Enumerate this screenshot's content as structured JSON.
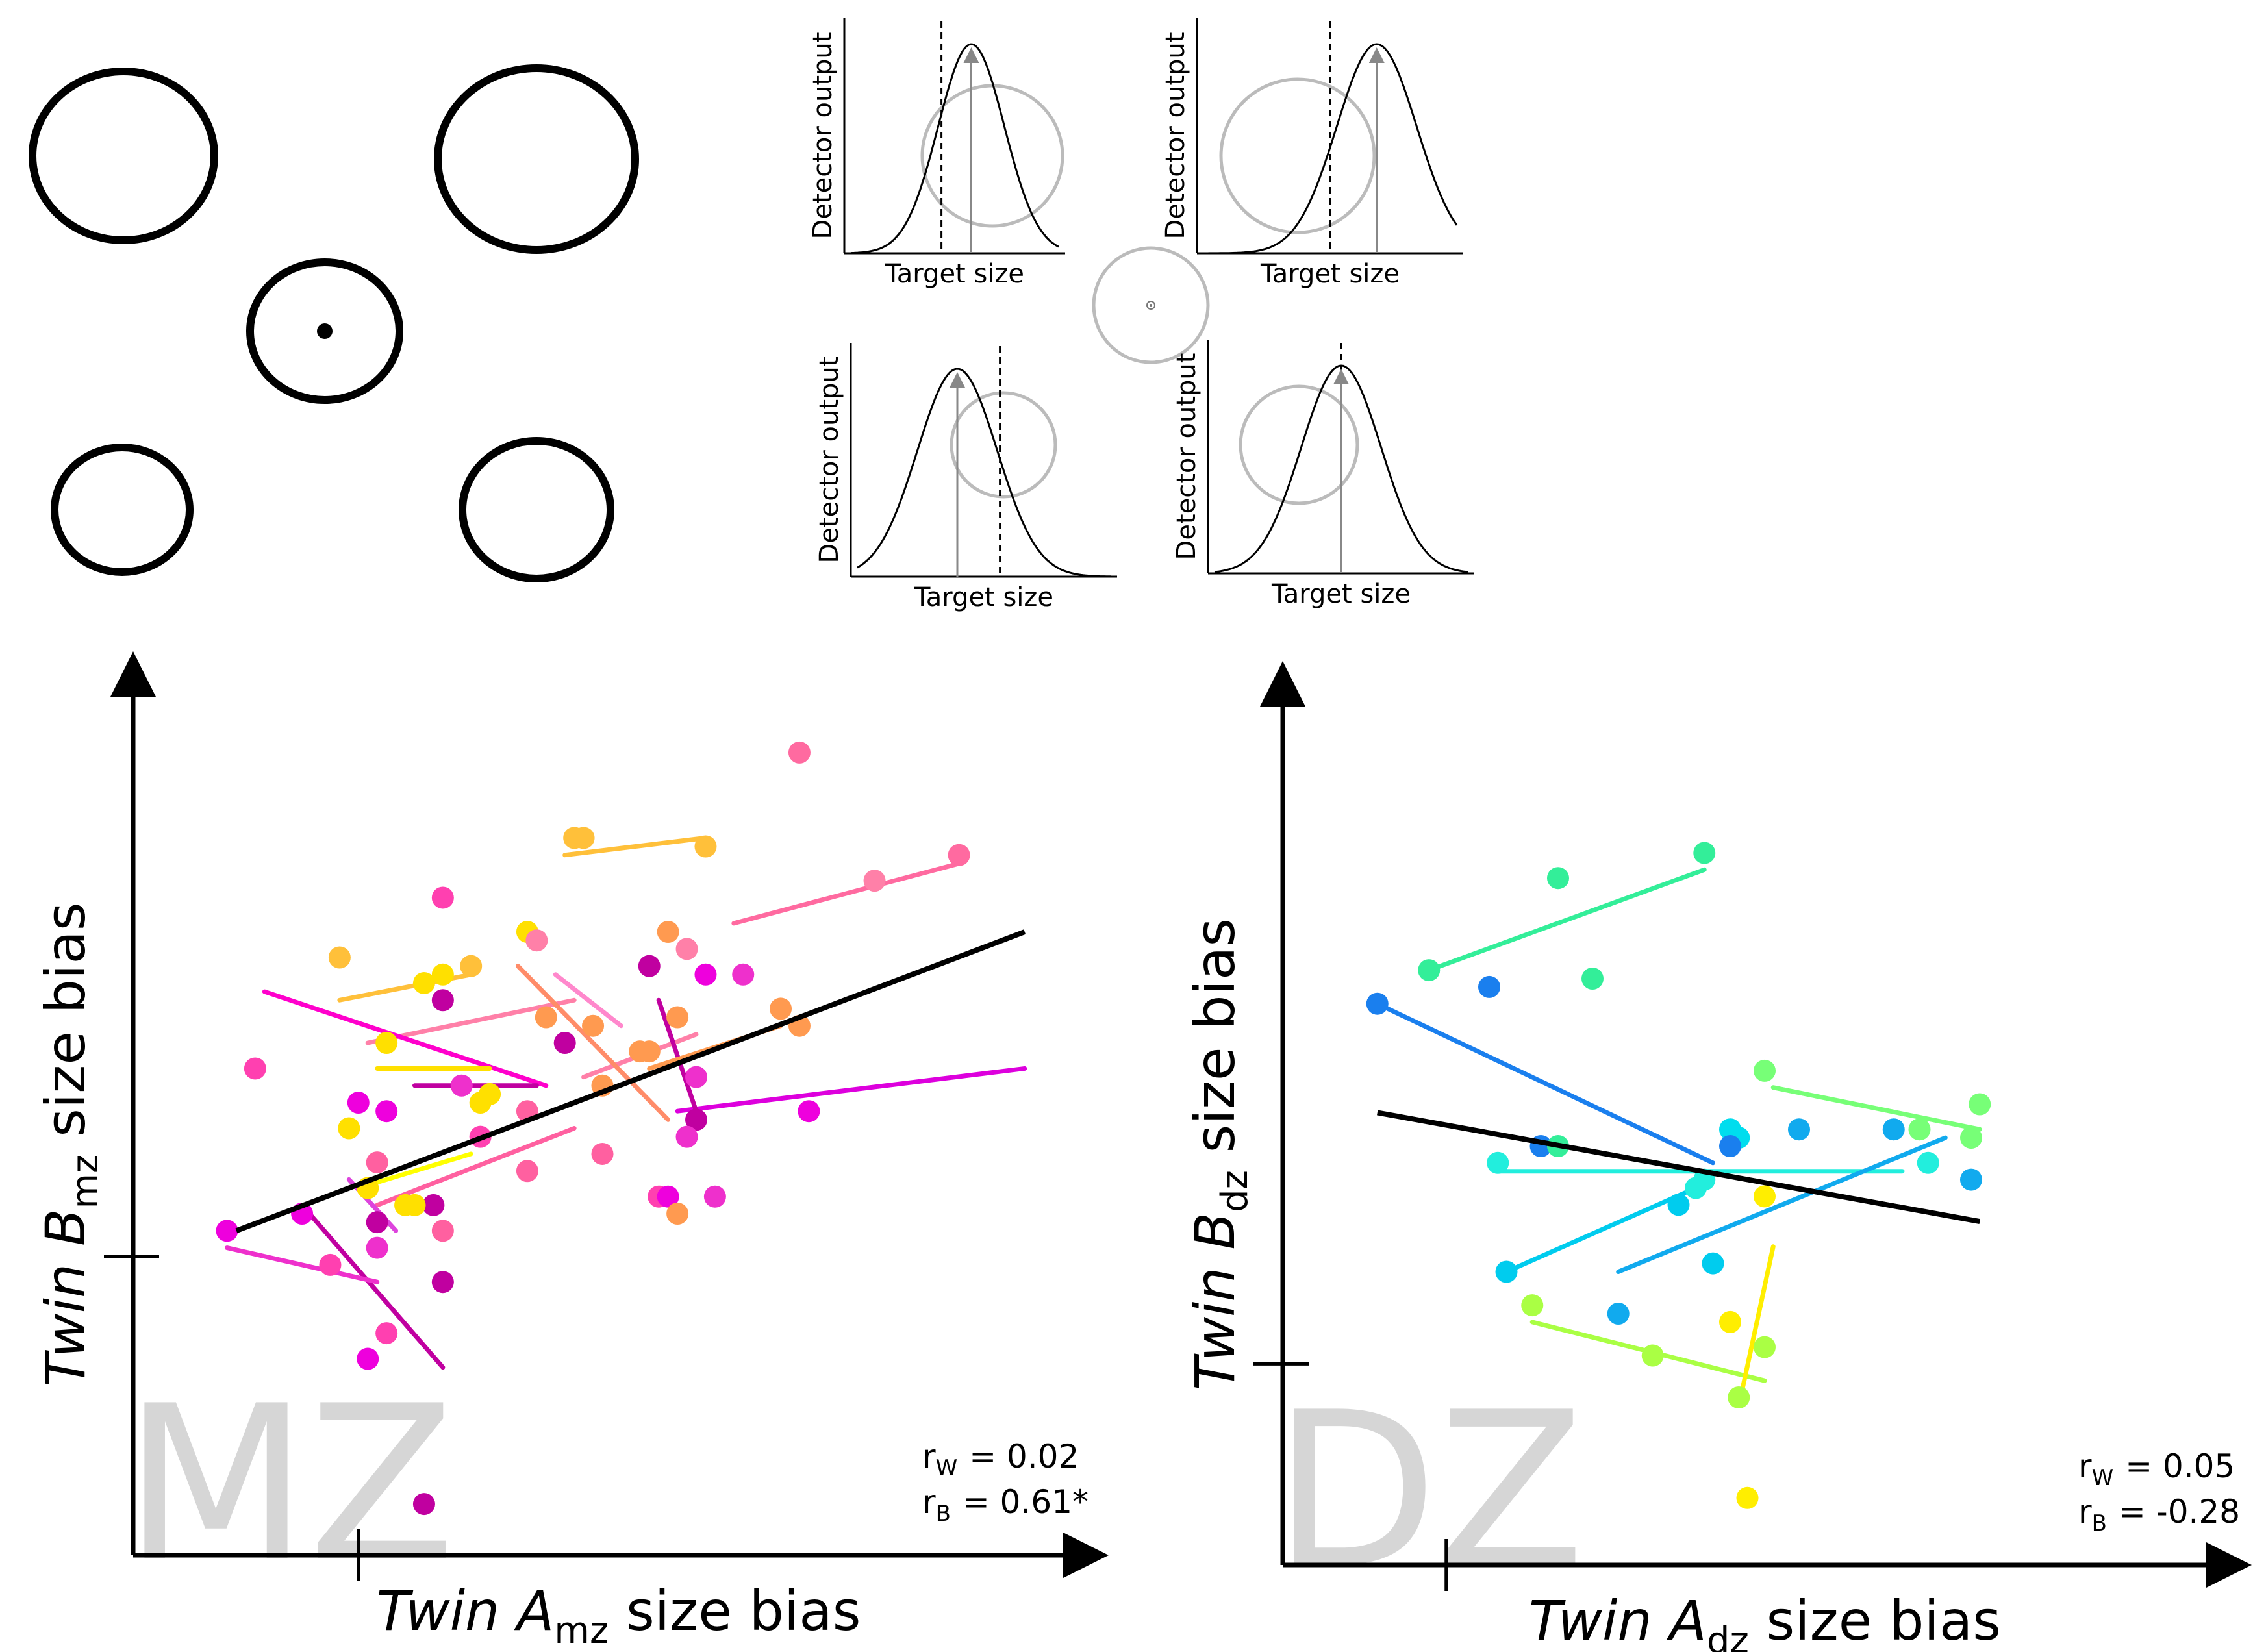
{
  "stimulus": {
    "description_free": true,
    "circles": 5,
    "fixation": true
  },
  "detector_panels": [
    {
      "ylabel": "Detector output",
      "xlabel": "Target size",
      "peak_offset": 0.15,
      "dashed_offset": -0.12,
      "shape": "right-shifted"
    },
    {
      "ylabel": "Detector output",
      "xlabel": "Target size",
      "peak_offset": 0.35,
      "dashed_offset": 0.0,
      "shape": "right-shifted"
    },
    {
      "ylabel": "Detector output",
      "xlabel": "Target size",
      "peak_offset": -0.2,
      "dashed_offset": 0.12,
      "shape": "left-shifted"
    },
    {
      "ylabel": "Detector output",
      "xlabel": "Target size",
      "peak_offset": 0.0,
      "dashed_offset": 0.0,
      "shape": "centered"
    }
  ],
  "chart_data": [
    {
      "type": "scatter",
      "panel": "MZ",
      "watermark": "MZ",
      "xlabel": {
        "italic": "Twin A",
        "sub": "mz",
        "rest": " size bias"
      },
      "ylabel": {
        "italic": "Twin B",
        "sub": "mz",
        "rest": " size bias"
      },
      "stats": [
        {
          "sub": "W",
          "label": "r",
          "value": "= 0.02"
        },
        {
          "sub": "B",
          "label": "r",
          "value": "= 0.61*"
        }
      ],
      "xlim": [
        0,
        1
      ],
      "ylim": [
        0,
        1
      ],
      "origin_tick": {
        "x": 0.24,
        "y": 0.35
      },
      "regression": {
        "x": [
          0.11,
          0.95
        ],
        "y": [
          0.38,
          0.73
        ],
        "color": "#000000"
      },
      "pairs": [
        {
          "color": "#ffc03a",
          "p1": [
            0.46,
            0.82
          ],
          "p2": [
            0.61,
            0.84
          ]
        },
        {
          "color": "#ffc03a",
          "p1": [
            0.22,
            0.65
          ],
          "p2": [
            0.36,
            0.68
          ]
        },
        {
          "color": "#ff6aa0",
          "p1": [
            0.64,
            0.74
          ],
          "p2": [
            0.88,
            0.81
          ]
        },
        {
          "color": "#ff80a8",
          "p1": [
            0.25,
            0.6
          ],
          "p2": [
            0.47,
            0.65
          ]
        },
        {
          "color": "#ff00cc",
          "p1": [
            0.14,
            0.66
          ],
          "p2": [
            0.44,
            0.55
          ]
        },
        {
          "color": "#dd00dd",
          "p1": [
            0.58,
            0.52
          ],
          "p2": [
            0.95,
            0.57
          ]
        },
        {
          "color": "#ff80a8",
          "p1": [
            0.48,
            0.56
          ],
          "p2": [
            0.6,
            0.61
          ]
        },
        {
          "color": "#c000a0",
          "p1": [
            0.56,
            0.65
          ],
          "p2": [
            0.6,
            0.52
          ]
        },
        {
          "color": "#ff8c69",
          "p1": [
            0.41,
            0.69
          ],
          "p2": [
            0.57,
            0.51
          ]
        },
        {
          "color": "#ff9a50",
          "p1": [
            0.55,
            0.57
          ],
          "p2": [
            0.69,
            0.62
          ]
        },
        {
          "color": "#ffe000",
          "p1": [
            0.26,
            0.57
          ],
          "p2": [
            0.38,
            0.57
          ]
        },
        {
          "color": "#ff60a0",
          "p1": [
            0.26,
            0.41
          ],
          "p2": [
            0.47,
            0.5
          ]
        },
        {
          "color": "#ffff00",
          "p1": [
            0.24,
            0.43
          ],
          "p2": [
            0.36,
            0.47
          ]
        },
        {
          "color": "#c000a0",
          "p1": [
            0.18,
            0.41
          ],
          "p2": [
            0.33,
            0.22
          ]
        },
        {
          "color": "#ee30cc",
          "p1": [
            0.1,
            0.36
          ],
          "p2": [
            0.26,
            0.32
          ]
        },
        {
          "color": "#c000a0",
          "p1": [
            0.3,
            0.55
          ],
          "p2": [
            0.43,
            0.55
          ]
        },
        {
          "color": "#dd44dd",
          "p1": [
            0.23,
            0.44
          ],
          "p2": [
            0.28,
            0.38
          ]
        },
        {
          "color": "#ff88cc",
          "p1": [
            0.45,
            0.68
          ],
          "p2": [
            0.52,
            0.62
          ]
        }
      ],
      "points": [
        {
          "x": 0.71,
          "y": 0.94,
          "c": "#ff6aa0"
        },
        {
          "x": 0.47,
          "y": 0.84,
          "c": "#ffc03a"
        },
        {
          "x": 0.48,
          "y": 0.84,
          "c": "#ffc03a"
        },
        {
          "x": 0.61,
          "y": 0.83,
          "c": "#ffc03a"
        },
        {
          "x": 0.88,
          "y": 0.82,
          "c": "#ff6aa0"
        },
        {
          "x": 0.79,
          "y": 0.79,
          "c": "#ff80a8"
        },
        {
          "x": 0.33,
          "y": 0.77,
          "c": "#ff40b0"
        },
        {
          "x": 0.42,
          "y": 0.73,
          "c": "#ffe000"
        },
        {
          "x": 0.43,
          "y": 0.72,
          "c": "#ff80a8"
        },
        {
          "x": 0.57,
          "y": 0.73,
          "c": "#ff9a50"
        },
        {
          "x": 0.59,
          "y": 0.71,
          "c": "#ff80a8"
        },
        {
          "x": 0.22,
          "y": 0.7,
          "c": "#ffc03a"
        },
        {
          "x": 0.36,
          "y": 0.69,
          "c": "#ffc03a"
        },
        {
          "x": 0.33,
          "y": 0.68,
          "c": "#ffe000"
        },
        {
          "x": 0.31,
          "y": 0.67,
          "c": "#ffe000"
        },
        {
          "x": 0.33,
          "y": 0.65,
          "c": "#c000a0"
        },
        {
          "x": 0.55,
          "y": 0.69,
          "c": "#c000a0"
        },
        {
          "x": 0.61,
          "y": 0.68,
          "c": "#ee00dd"
        },
        {
          "x": 0.65,
          "y": 0.68,
          "c": "#ee30cc"
        },
        {
          "x": 0.44,
          "y": 0.63,
          "c": "#ff9a50"
        },
        {
          "x": 0.49,
          "y": 0.62,
          "c": "#ff9a50"
        },
        {
          "x": 0.58,
          "y": 0.63,
          "c": "#ff9a50"
        },
        {
          "x": 0.69,
          "y": 0.64,
          "c": "#ff9a50"
        },
        {
          "x": 0.71,
          "y": 0.62,
          "c": "#ff9a50"
        },
        {
          "x": 0.46,
          "y": 0.6,
          "c": "#c000a0"
        },
        {
          "x": 0.54,
          "y": 0.59,
          "c": "#ff9a50"
        },
        {
          "x": 0.55,
          "y": 0.59,
          "c": "#ff9a50"
        },
        {
          "x": 0.27,
          "y": 0.6,
          "c": "#ffe000"
        },
        {
          "x": 0.13,
          "y": 0.57,
          "c": "#ff40b0"
        },
        {
          "x": 0.5,
          "y": 0.55,
          "c": "#ff9a50"
        },
        {
          "x": 0.6,
          "y": 0.56,
          "c": "#ee30cc"
        },
        {
          "x": 0.35,
          "y": 0.55,
          "c": "#ee30cc"
        },
        {
          "x": 0.38,
          "y": 0.54,
          "c": "#ffe000"
        },
        {
          "x": 0.37,
          "y": 0.53,
          "c": "#ffe000"
        },
        {
          "x": 0.24,
          "y": 0.53,
          "c": "#ee00dd"
        },
        {
          "x": 0.27,
          "y": 0.52,
          "c": "#ee00dd"
        },
        {
          "x": 0.42,
          "y": 0.52,
          "c": "#ff60a0"
        },
        {
          "x": 0.6,
          "y": 0.51,
          "c": "#c000a0"
        },
        {
          "x": 0.72,
          "y": 0.52,
          "c": "#ee00dd"
        },
        {
          "x": 0.23,
          "y": 0.5,
          "c": "#ffe000"
        },
        {
          "x": 0.37,
          "y": 0.49,
          "c": "#ff40b0"
        },
        {
          "x": 0.59,
          "y": 0.49,
          "c": "#ee30cc"
        },
        {
          "x": 0.5,
          "y": 0.47,
          "c": "#ff60a0"
        },
        {
          "x": 0.26,
          "y": 0.46,
          "c": "#ff60a0"
        },
        {
          "x": 0.42,
          "y": 0.45,
          "c": "#ff60a0"
        },
        {
          "x": 0.25,
          "y": 0.43,
          "c": "#ffe000"
        },
        {
          "x": 0.56,
          "y": 0.42,
          "c": "#ff40b0"
        },
        {
          "x": 0.57,
          "y": 0.42,
          "c": "#ee00dd"
        },
        {
          "x": 0.62,
          "y": 0.42,
          "c": "#ee30cc"
        },
        {
          "x": 0.32,
          "y": 0.41,
          "c": "#c000a0"
        },
        {
          "x": 0.29,
          "y": 0.41,
          "c": "#ffe000"
        },
        {
          "x": 0.3,
          "y": 0.41,
          "c": "#ffe000"
        },
        {
          "x": 0.18,
          "y": 0.4,
          "c": "#ee00dd"
        },
        {
          "x": 0.26,
          "y": 0.39,
          "c": "#c000a0"
        },
        {
          "x": 0.58,
          "y": 0.4,
          "c": "#ff9a50"
        },
        {
          "x": 0.1,
          "y": 0.38,
          "c": "#ee00dd"
        },
        {
          "x": 0.33,
          "y": 0.38,
          "c": "#ff60a0"
        },
        {
          "x": 0.26,
          "y": 0.36,
          "c": "#ee30cc"
        },
        {
          "x": 0.21,
          "y": 0.34,
          "c": "#ff40b0"
        },
        {
          "x": 0.33,
          "y": 0.32,
          "c": "#c000a0"
        },
        {
          "x": 0.27,
          "y": 0.26,
          "c": "#ff40b0"
        },
        {
          "x": 0.25,
          "y": 0.23,
          "c": "#ee00dd"
        },
        {
          "x": 0.31,
          "y": 0.06,
          "c": "#c000a0"
        }
      ]
    },
    {
      "type": "scatter",
      "panel": "DZ",
      "watermark": "DZ",
      "xlabel": {
        "italic": "Twin A",
        "sub": "dz",
        "rest": " size bias"
      },
      "ylabel": {
        "italic": "Twin B",
        "sub": "dz",
        "rest": " size bias"
      },
      "stats": [
        {
          "sub": "W",
          "label": "r",
          "value": "= 0.05"
        },
        {
          "sub": "B",
          "label": "r",
          "value": "= -0.28"
        }
      ],
      "xlim": [
        0,
        1
      ],
      "ylim": [
        0,
        1
      ],
      "origin_tick": {
        "x": 0.19,
        "y": 0.24
      },
      "regression": {
        "x": [
          0.11,
          0.81
        ],
        "y": [
          0.54,
          0.41
        ],
        "color": "#000000"
      },
      "pairs": [
        {
          "color": "#33ee99",
          "p1": [
            0.17,
            0.71
          ],
          "p2": [
            0.49,
            0.83
          ]
        },
        {
          "color": "#1a7fee",
          "p1": [
            0.11,
            0.67
          ],
          "p2": [
            0.5,
            0.48
          ]
        },
        {
          "color": "#77ff77",
          "p1": [
            0.57,
            0.57
          ],
          "p2": [
            0.81,
            0.52
          ]
        },
        {
          "color": "#22eedd",
          "p1": [
            0.25,
            0.47
          ],
          "p2": [
            0.72,
            0.47
          ]
        },
        {
          "color": "#00ccee",
          "p1": [
            0.26,
            0.35
          ],
          "p2": [
            0.48,
            0.45
          ]
        },
        {
          "color": "#11aaee",
          "p1": [
            0.39,
            0.35
          ],
          "p2": [
            0.77,
            0.51
          ]
        },
        {
          "color": "#aaff44",
          "p1": [
            0.29,
            0.29
          ],
          "p2": [
            0.56,
            0.22
          ]
        },
        {
          "color": "#ffee00",
          "p1": [
            0.53,
            0.19
          ],
          "p2": [
            0.57,
            0.38
          ]
        }
      ],
      "points": [
        {
          "x": 0.49,
          "y": 0.85,
          "c": "#33ee99"
        },
        {
          "x": 0.32,
          "y": 0.82,
          "c": "#33ee99"
        },
        {
          "x": 0.17,
          "y": 0.71,
          "c": "#33ee99"
        },
        {
          "x": 0.36,
          "y": 0.7,
          "c": "#33ee99"
        },
        {
          "x": 0.24,
          "y": 0.69,
          "c": "#1a7fee"
        },
        {
          "x": 0.11,
          "y": 0.67,
          "c": "#1a7fee"
        },
        {
          "x": 0.56,
          "y": 0.59,
          "c": "#77ff77"
        },
        {
          "x": 0.81,
          "y": 0.55,
          "c": "#77ff77"
        },
        {
          "x": 0.52,
          "y": 0.52,
          "c": "#00ddee"
        },
        {
          "x": 0.6,
          "y": 0.52,
          "c": "#11aaee"
        },
        {
          "x": 0.74,
          "y": 0.52,
          "c": "#77ff77"
        },
        {
          "x": 0.8,
          "y": 0.51,
          "c": "#77ff77"
        },
        {
          "x": 0.71,
          "y": 0.52,
          "c": "#11aaee"
        },
        {
          "x": 0.53,
          "y": 0.51,
          "c": "#00ddee"
        },
        {
          "x": 0.3,
          "y": 0.5,
          "c": "#1a7fee"
        },
        {
          "x": 0.32,
          "y": 0.5,
          "c": "#33ee99"
        },
        {
          "x": 0.52,
          "y": 0.5,
          "c": "#1a7fee"
        },
        {
          "x": 0.75,
          "y": 0.48,
          "c": "#22eedd"
        },
        {
          "x": 0.25,
          "y": 0.48,
          "c": "#22eedd"
        },
        {
          "x": 0.8,
          "y": 0.46,
          "c": "#11aaee"
        },
        {
          "x": 0.49,
          "y": 0.46,
          "c": "#22eedd"
        },
        {
          "x": 0.48,
          "y": 0.45,
          "c": "#22eedd"
        },
        {
          "x": 0.56,
          "y": 0.44,
          "c": "#ffee00"
        },
        {
          "x": 0.46,
          "y": 0.43,
          "c": "#00ccee"
        },
        {
          "x": 0.26,
          "y": 0.35,
          "c": "#00ccee"
        },
        {
          "x": 0.5,
          "y": 0.36,
          "c": "#00ccee"
        },
        {
          "x": 0.29,
          "y": 0.31,
          "c": "#aaff44"
        },
        {
          "x": 0.39,
          "y": 0.3,
          "c": "#11aaee"
        },
        {
          "x": 0.52,
          "y": 0.29,
          "c": "#ffee00"
        },
        {
          "x": 0.56,
          "y": 0.26,
          "c": "#aaff44"
        },
        {
          "x": 0.43,
          "y": 0.25,
          "c": "#aaff44"
        },
        {
          "x": 0.53,
          "y": 0.2,
          "c": "#aaff44"
        },
        {
          "x": 0.54,
          "y": 0.08,
          "c": "#ffee00"
        }
      ]
    }
  ]
}
